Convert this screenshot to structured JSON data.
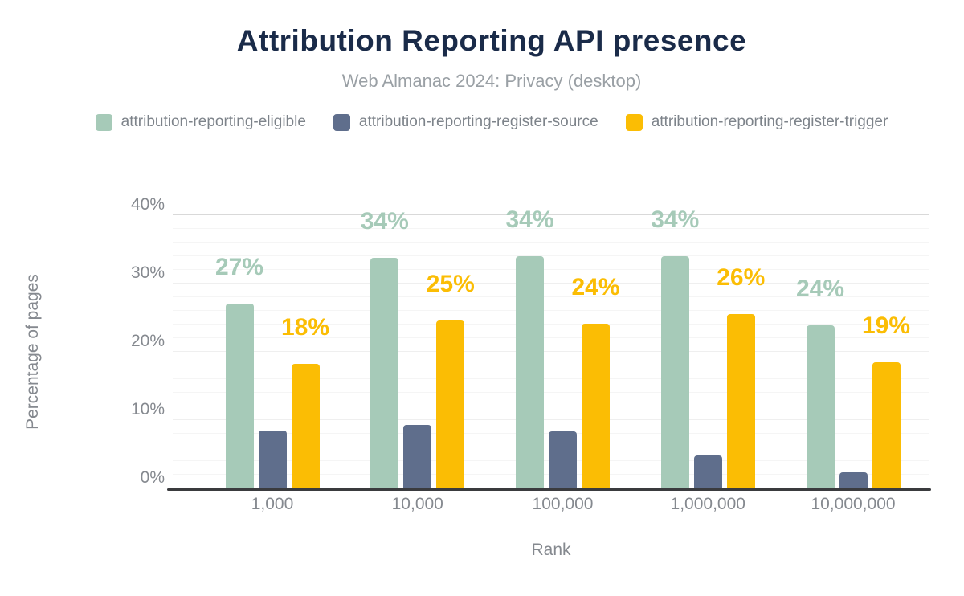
{
  "chart_data": {
    "type": "bar",
    "title": "Attribution Reporting API presence",
    "subtitle": "Web Almanac 2024: Privacy (desktop)",
    "xlabel": "Rank",
    "ylabel": "Percentage of pages",
    "categories": [
      "1,000",
      "10,000",
      "100,000",
      "1,000,000",
      "10,000,000"
    ],
    "series": [
      {
        "name": "attribution-reporting-eligible",
        "color": "#a6cab8",
        "values": [
          27.1,
          33.8,
          34.0,
          34.0,
          23.9
        ],
        "data_labels": [
          "27%",
          "34%",
          "34%",
          "34%",
          "24%"
        ]
      },
      {
        "name": "attribution-reporting-register-source",
        "color": "#5f6e8c",
        "values": [
          8.5,
          9.3,
          8.4,
          4.8,
          2.3
        ],
        "data_labels": null
      },
      {
        "name": "attribution-reporting-register-trigger",
        "color": "#fbbd04",
        "values": [
          18.2,
          24.6,
          24.1,
          25.5,
          18.5
        ],
        "data_labels": [
          "18%",
          "25%",
          "24%",
          "26%",
          "19%"
        ]
      }
    ],
    "ylim": [
      0,
      40
    ],
    "yticks": [
      {
        "label": "0%",
        "value": 0
      },
      {
        "label": "10%",
        "value": 10
      },
      {
        "label": "20%",
        "value": 20
      },
      {
        "label": "30%",
        "value": 30
      },
      {
        "label": "40%",
        "value": 40
      }
    ],
    "grid": "horizontal minor gridlines every 2%, major every 10%",
    "legend_position": "top"
  },
  "palette": {
    "background": "#ffffff",
    "title_navy": "#1a2b49",
    "subtitle_gray": "#9aa0a5",
    "legend_text_gray": "#7d838a",
    "axis_text_gray": "#85898f",
    "axis_line_dark": "#3a3b3e",
    "gridline_light": "#f5f5f5"
  }
}
